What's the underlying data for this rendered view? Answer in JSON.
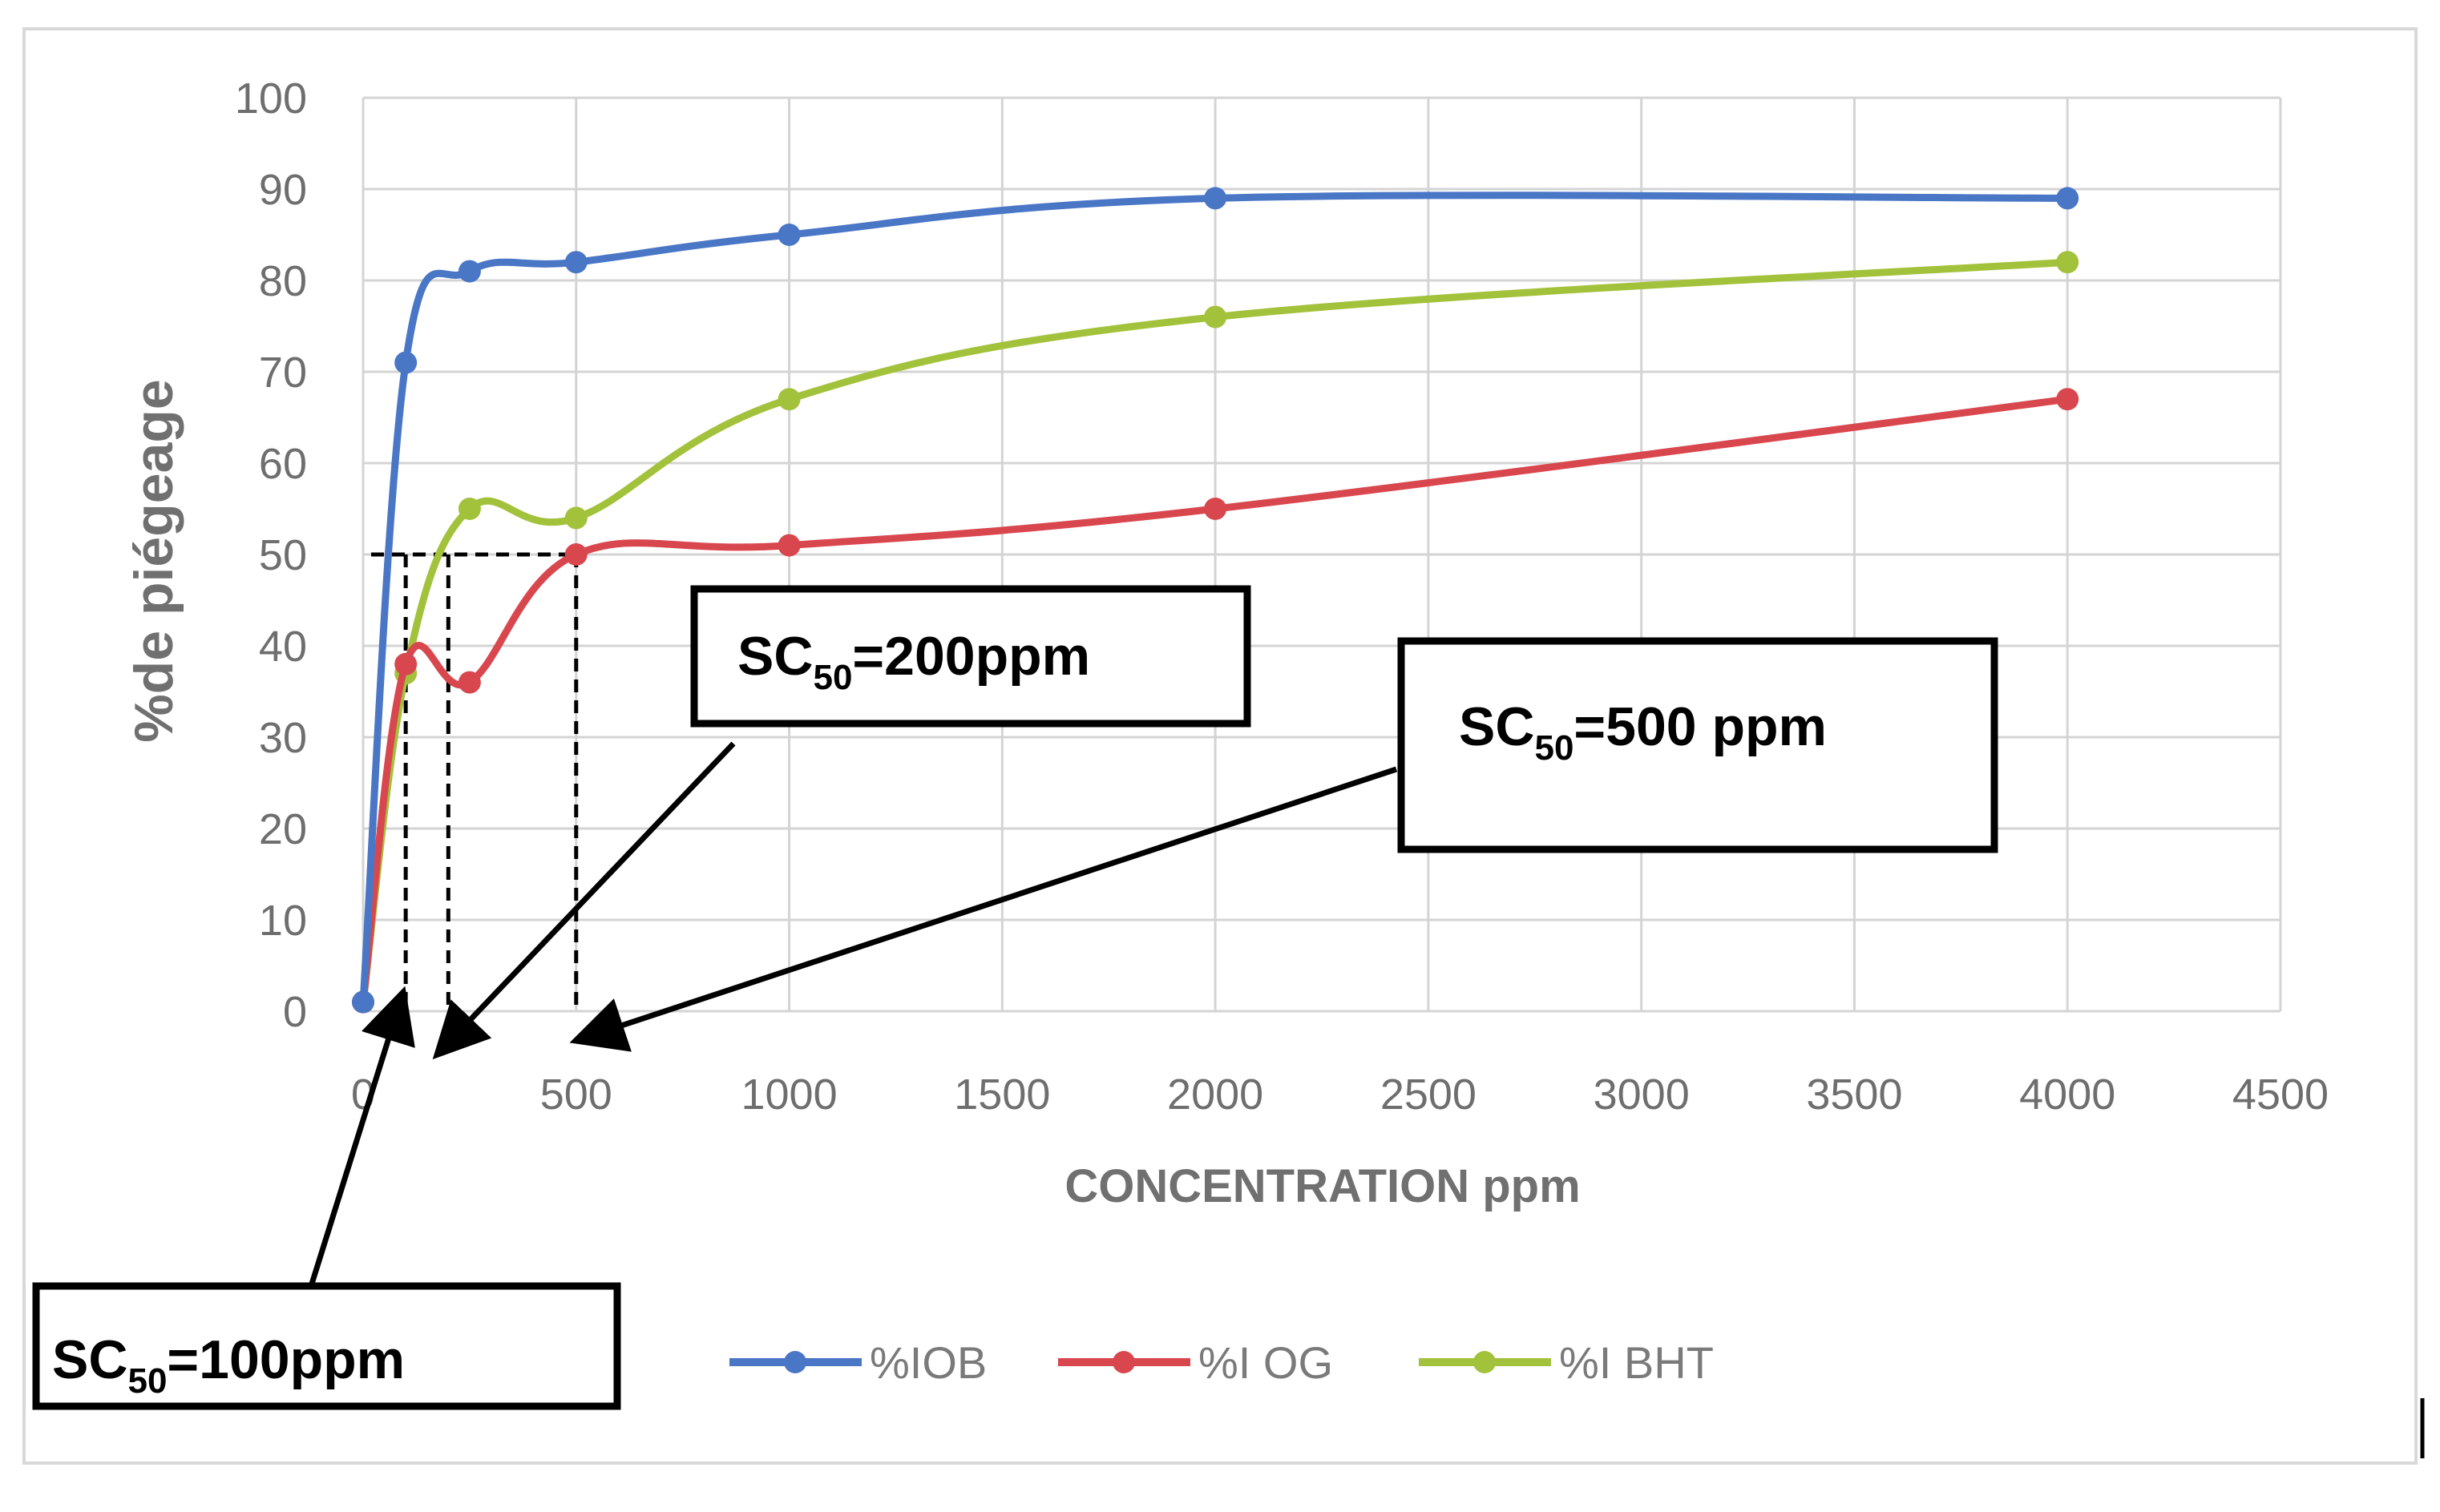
{
  "chart_data": {
    "type": "line",
    "title": "",
    "xlabel": "CONCENTRATION ppm",
    "ylabel": "%de  piégeage",
    "xlim": [
      0,
      4500
    ],
    "ylim": [
      0,
      100
    ],
    "x_ticks": [
      0,
      500,
      1000,
      1500,
      2000,
      2500,
      3000,
      3500,
      4000,
      4500
    ],
    "y_ticks": [
      0,
      10,
      20,
      30,
      40,
      50,
      60,
      70,
      80,
      90,
      100
    ],
    "grid": true,
    "legend_position": "bottom",
    "x": [
      0,
      100,
      250,
      500,
      1000,
      2000,
      4000
    ],
    "series": [
      {
        "name": "%IOB",
        "color": "#4a76c6",
        "values": [
          1,
          71,
          81,
          82,
          85,
          89,
          89
        ]
      },
      {
        "name": "%I OG",
        "color": "#d9474e",
        "values": [
          1,
          38,
          36,
          50,
          51,
          55,
          67
        ]
      },
      {
        "name": "%I BHT",
        "color": "#a3c23c",
        "values": [
          1,
          37,
          55,
          54,
          67,
          76,
          82
        ]
      }
    ],
    "reference_line": {
      "y": 50,
      "x_drops": [
        100,
        200,
        500
      ]
    },
    "annotations": [
      {
        "id": "sc100",
        "prefix": "SC",
        "subscript": "50",
        "suffix": "=100ppm",
        "target_x": 100
      },
      {
        "id": "sc200",
        "prefix": "SC",
        "subscript": "50",
        "suffix": "=200ppm",
        "target_x": 200
      },
      {
        "id": "sc500",
        "prefix": "SC",
        "subscript": "50",
        "suffix": "=500 ppm",
        "target_x": 500
      }
    ]
  }
}
